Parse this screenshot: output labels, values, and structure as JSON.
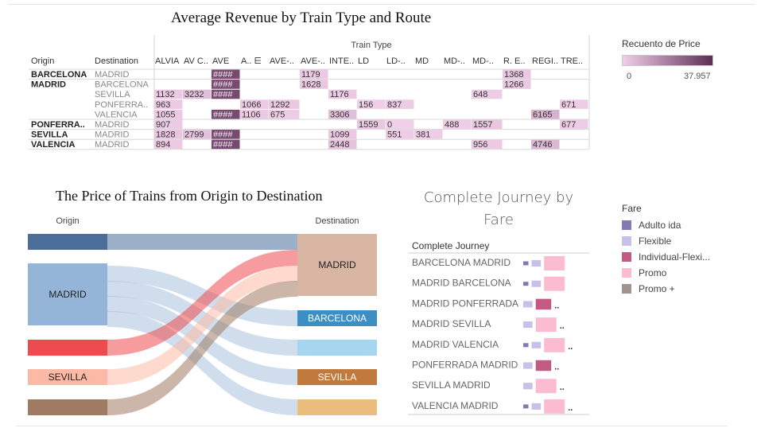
{
  "chart_data": [
    {
      "type": "heatmap",
      "title": "Average Revenue by Train Type and Route",
      "column_group_label": "Train Type",
      "row_header_origin": "Origin",
      "row_header_destination": "Destination",
      "columns": [
        "ALVIA",
        "AV C..",
        "AVE",
        "A.. ⋿",
        "AVE-..",
        "AVE-..",
        "INTE..",
        "LD",
        "LD-..",
        "MD",
        "MD-..",
        "MD-..",
        "R. E..",
        "REGI..",
        "TRE.."
      ],
      "rows": [
        {
          "origin": "BARCELONA",
          "destination": "MADRID",
          "cells": [
            "",
            "",
            "####",
            "",
            "",
            "1179",
            "",
            "",
            "",
            "",
            "",
            "",
            "1368",
            "",
            ""
          ]
        },
        {
          "origin": "MADRID",
          "destination": "BARCELONA",
          "cells": [
            "",
            "",
            "####",
            "",
            "",
            "1628",
            "",
            "",
            "",
            "",
            "",
            "",
            "1266",
            "",
            ""
          ]
        },
        {
          "origin": "",
          "destination": "SEVILLA",
          "cells": [
            "1132",
            "3232",
            "####",
            "",
            "",
            "",
            "1176",
            "",
            "",
            "",
            "",
            "648",
            "",
            "",
            ""
          ]
        },
        {
          "origin": "",
          "destination": "PONFERRA..",
          "cells": [
            "963",
            "",
            "",
            "1066",
            "1292",
            "",
            "",
            "156",
            "837",
            "",
            "",
            "",
            "",
            "",
            "671"
          ]
        },
        {
          "origin": "",
          "destination": "VALENCIA",
          "cells": [
            "1055",
            "",
            "####",
            "1106",
            "675",
            "",
            "3306",
            "",
            "",
            "",
            "",
            "",
            "",
            "6165",
            ""
          ]
        },
        {
          "origin": "PONFERRA..",
          "destination": "MADRID",
          "cells": [
            "907",
            "",
            "",
            "",
            "",
            "",
            "",
            "1559",
            "0",
            "",
            "488",
            "1557",
            "",
            "",
            "677"
          ]
        },
        {
          "origin": "SEVILLA",
          "destination": "MADRID",
          "cells": [
            "1828",
            "2799",
            "####",
            "",
            "",
            "",
            "1099",
            "",
            "551",
            "381",
            "",
            "",
            "",
            "",
            ""
          ]
        },
        {
          "origin": "VALENCIA",
          "destination": "MADRID",
          "cells": [
            "894",
            "",
            "####",
            "",
            "",
            "",
            "2448",
            "",
            "",
            "",
            "",
            "956",
            "",
            "4746",
            ""
          ]
        }
      ],
      "legend": {
        "title": "Recuento de Price",
        "min": "0",
        "max": "37.957",
        "min_value": 0,
        "max_value": 37957,
        "color_low": "#f1cfe8",
        "color_high": "#5c2e56"
      }
    },
    {
      "type": "sankey",
      "title": "The Price of Trains from Origin to Destination",
      "left_header": "Origin",
      "right_header": "Destination",
      "origins": [
        {
          "label": "",
          "color": "#4a6d9a",
          "size": 1
        },
        {
          "label": "MADRID",
          "color": "#94b4d8",
          "size": 4
        },
        {
          "label": "",
          "color": "#ee4b4f",
          "size": 1
        },
        {
          "label": "SEVILLA",
          "color": "#fcbaa6",
          "size": 1
        },
        {
          "label": "",
          "color": "#a07a62",
          "size": 1
        }
      ],
      "destinations": [
        {
          "label": "MADRID",
          "color": "#d9b5a4",
          "size": 4
        },
        {
          "label": "BARCELONA",
          "color": "#3d8ec3",
          "size": 1
        },
        {
          "label": "",
          "color": "#a6d6ef",
          "size": 1
        },
        {
          "label": "SEVILLA",
          "color": "#c07a3e",
          "size": 1
        },
        {
          "label": "",
          "color": "#ebbd7e",
          "size": 1
        }
      ],
      "flows": [
        {
          "from": 0,
          "to": 0,
          "value": 1
        },
        {
          "from": 1,
          "to": 1,
          "value": 1
        },
        {
          "from": 1,
          "to": 2,
          "value": 1
        },
        {
          "from": 1,
          "to": 3,
          "value": 1
        },
        {
          "from": 1,
          "to": 4,
          "value": 1
        },
        {
          "from": 2,
          "to": 0,
          "value": 1
        },
        {
          "from": 3,
          "to": 0,
          "value": 1
        },
        {
          "from": 4,
          "to": 0,
          "value": 1
        }
      ]
    },
    {
      "type": "bar",
      "title": "Complete Journey by Fare",
      "row_header": "Complete Journey",
      "categories": [
        "BARCELONA MADRID",
        "MADRID BARCELONA",
        "MADRID PONFERRADA",
        "MADRID SEVILLA",
        "MADRID VALENCIA",
        "PONFERRADA MADRID",
        "SEVILLA MADRID",
        "VALENCIA MADRID"
      ],
      "series": [
        {
          "name": "Adulto ida",
          "color": "#8579b2",
          "values": [
            0.25,
            0.25,
            0,
            0,
            0.25,
            0,
            0,
            0.25
          ]
        },
        {
          "name": "Flexible",
          "color": "#c9c0ea",
          "values": [
            0.45,
            0.45,
            0.45,
            0.45,
            0.45,
            0.45,
            0.45,
            0.45
          ]
        },
        {
          "name": "Individual-Flexi...",
          "color": "#c15b82",
          "values": [
            0,
            0,
            0.75,
            0,
            0,
            0.75,
            0,
            0
          ]
        },
        {
          "name": "Promo",
          "color": "#fbbbd1",
          "values": [
            1,
            1,
            0,
            1,
            1,
            0,
            1,
            1
          ]
        },
        {
          "name": "Promo +",
          "color": "#a09590",
          "values": [
            0,
            0,
            0,
            0,
            0,
            0,
            0,
            0
          ]
        }
      ],
      "truncated_marker": "..",
      "truncated_rows": [
        2,
        3,
        4,
        5,
        6,
        7
      ],
      "legend_title": "Fare"
    }
  ]
}
